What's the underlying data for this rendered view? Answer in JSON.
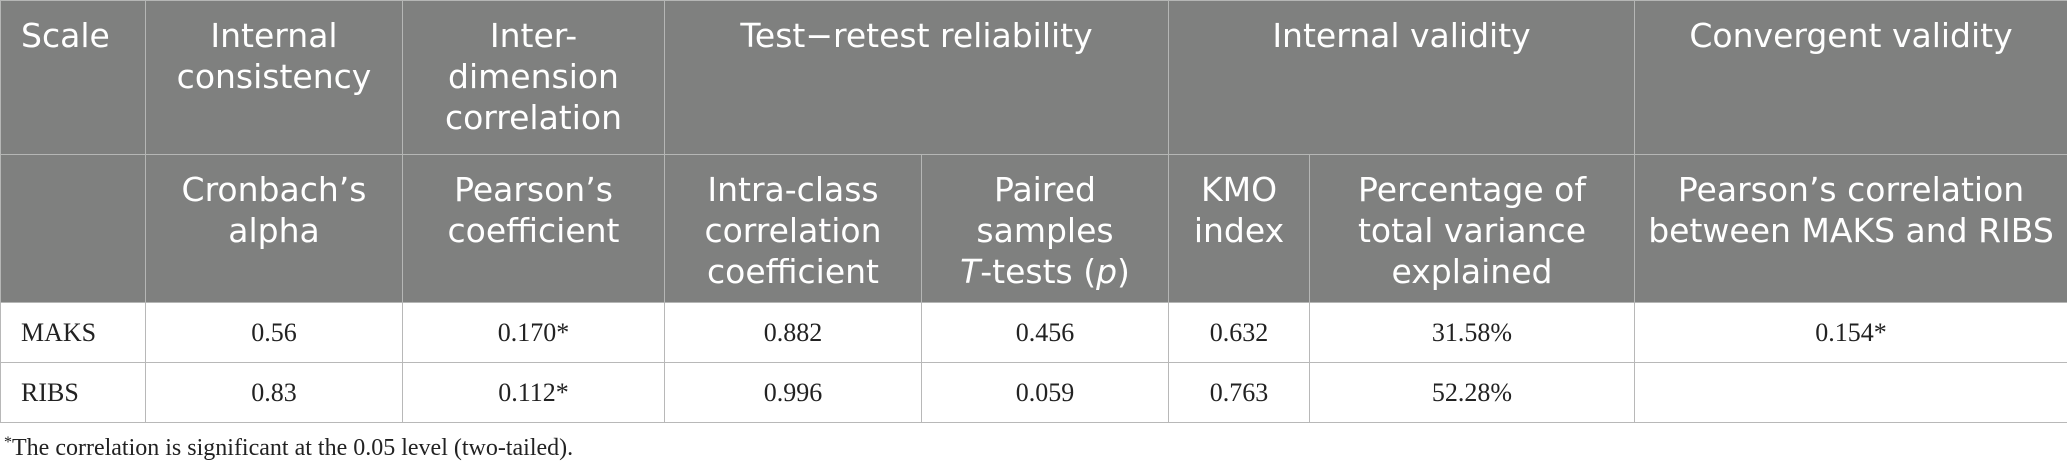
{
  "header": {
    "row1": {
      "scale": "Scale",
      "internal_consistency": "Internal consistency",
      "inter_dimension": "Inter-dimension correlation",
      "test_retest": "Test−retest reliability",
      "internal_validity": "Internal validity",
      "convergent_validity": "Convergent validity"
    },
    "row2": {
      "cronbach": "Cronbach’s alpha",
      "pearson_coeff": "Pearson’s coefficient",
      "icc": "Intra-class correlation coefficient",
      "paired_prefix": "Paired samples",
      "paired_T": "T",
      "paired_mid": "-tests (",
      "paired_p": "p",
      "paired_end": ")",
      "kmo": "KMO index",
      "percent_var": "Percentage of total variance explained",
      "pearson_between": "Pearson’s correlation between MAKS and RIBS"
    }
  },
  "rows": [
    {
      "scale": "MAKS",
      "cronbach": "0.56",
      "pearson": "0.170*",
      "icc": "0.882",
      "paired": "0.456",
      "kmo": "0.632",
      "percent": "31.58%",
      "convergent": "0.154*"
    },
    {
      "scale": "RIBS",
      "cronbach": "0.83",
      "pearson": "0.112*",
      "icc": "0.996",
      "paired": "0.059",
      "kmo": "0.763",
      "percent": "52.28%",
      "convergent": ""
    }
  ],
  "footnote": {
    "marker": "*",
    "text": "The correlation is significant at the 0.05 level (two-tailed)."
  }
}
